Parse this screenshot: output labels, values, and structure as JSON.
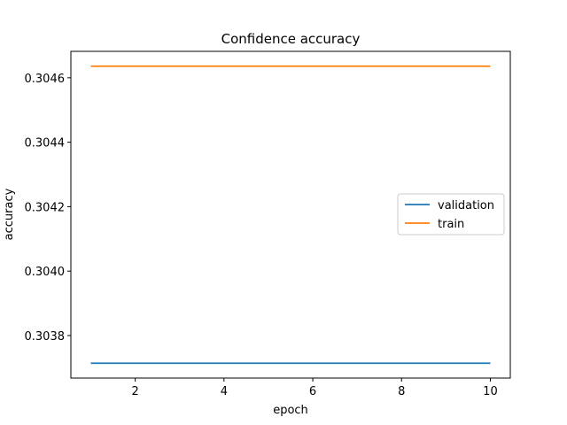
{
  "chart_data": {
    "type": "line",
    "title": "Confidence accuracy",
    "xlabel": "epoch",
    "ylabel": "accuracy",
    "x": [
      1,
      2,
      3,
      4,
      5,
      6,
      7,
      8,
      9,
      10
    ],
    "xlim": [
      0.55,
      10.45
    ],
    "ylim": [
      0.303668,
      0.304682
    ],
    "xticks": [
      2,
      4,
      6,
      8,
      10
    ],
    "yticks": [
      0.3038,
      0.304,
      0.3042,
      0.3044,
      0.3046
    ],
    "ytick_labels": [
      "0.3038",
      "0.3040",
      "0.3042",
      "0.3044",
      "0.3046"
    ],
    "grid": false,
    "legend_position": "center-right",
    "series": [
      {
        "name": "validation",
        "color": "#1f77b4",
        "values": [
          0.303714,
          0.303714,
          0.303714,
          0.303714,
          0.303714,
          0.303714,
          0.303714,
          0.303714,
          0.303714,
          0.303714
        ]
      },
      {
        "name": "train",
        "color": "#ff7f0e",
        "values": [
          0.304636,
          0.304636,
          0.304636,
          0.304636,
          0.304636,
          0.304636,
          0.304636,
          0.304636,
          0.304636,
          0.304636
        ]
      }
    ]
  }
}
